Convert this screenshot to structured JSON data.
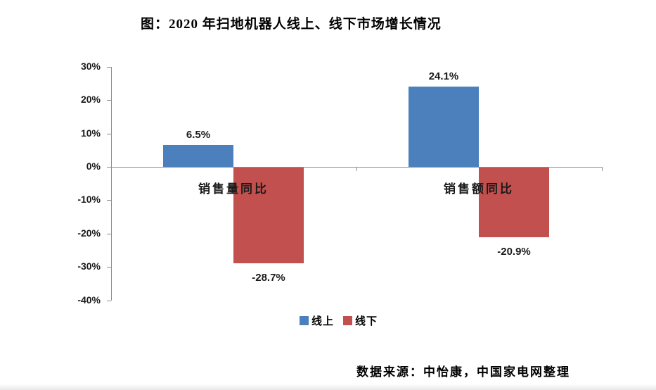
{
  "title": "图：2020 年扫地机器人线上、线下市场增长情况",
  "source": "数据来源：中怡康，中国家电网整理",
  "colors": {
    "online": "#4c80bd",
    "offline": "#c2504e",
    "axis": "#8c8c8c"
  },
  "chart_data": {
    "type": "bar",
    "title": "图：2020 年扫地机器人线上、线下市场增长情况",
    "categories": [
      "销售量同比",
      "销售额同比"
    ],
    "series": [
      {
        "name": "线上",
        "key": "online",
        "color": "#4c80bd",
        "values": [
          6.5,
          24.1
        ],
        "labels": [
          "6.5%",
          "24.1%"
        ]
      },
      {
        "name": "线下",
        "key": "offline",
        "color": "#c2504e",
        "values": [
          -28.7,
          -20.9
        ],
        "labels": [
          "-28.7%",
          "-20.9%"
        ]
      }
    ],
    "ylim": [
      -40,
      30
    ],
    "yticks": [
      30,
      20,
      10,
      0,
      -10,
      -20,
      -30,
      -40
    ],
    "ytick_labels": [
      "30%",
      "20%",
      "10%",
      "0%",
      "-10%",
      "-20%",
      "-30%",
      "-40%"
    ],
    "grid": false,
    "legend_position": "bottom-center",
    "source": "数据来源：中怡康，中国家电网整理"
  }
}
